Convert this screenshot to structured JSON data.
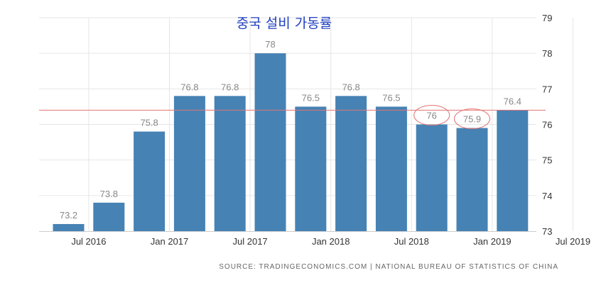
{
  "chart_data": {
    "type": "bar",
    "title": "중국 설비 가동률",
    "source": "SOURCE: TRADINGECONOMICS.COM | NATIONAL BUREAU OF STATISTICS OF CHINA",
    "categories": [
      "Q3 2016",
      "Q4 2016",
      "Q1 2017",
      "Q2 2017",
      "Q3 2017",
      "Q4 2017",
      "Q1 2018",
      "Q2 2018",
      "Q3 2018",
      "Q4 2018",
      "Q1 2019",
      "Q2 2019"
    ],
    "values": [
      73.2,
      73.8,
      75.8,
      76.8,
      76.8,
      78,
      76.5,
      76.8,
      76.5,
      76,
      75.9,
      76.4
    ],
    "value_labels": [
      "73.2",
      "73.8",
      "75.8",
      "76.8",
      "76.8",
      "78",
      "76.5",
      "76.8",
      "76.5",
      "76",
      "75.9",
      "76.4"
    ],
    "x_ticks": [
      "Jul 2016",
      "Jan 2017",
      "Jul 2017",
      "Jan 2018",
      "Jul 2018",
      "Jan 2019",
      "Jul 2019"
    ],
    "y_ticks": [
      "73",
      "74",
      "75",
      "76",
      "77",
      "78",
      "79"
    ],
    "ylim": [
      73,
      79
    ],
    "reference_line": 76.4,
    "highlighted": [
      "Q4 2018",
      "Q1 2019"
    ],
    "grid": true,
    "colors": {
      "bar": "#4682b4",
      "reference_line": "#e57373",
      "highlight_ring": "#e57373",
      "title": "#1f3fbf"
    }
  }
}
